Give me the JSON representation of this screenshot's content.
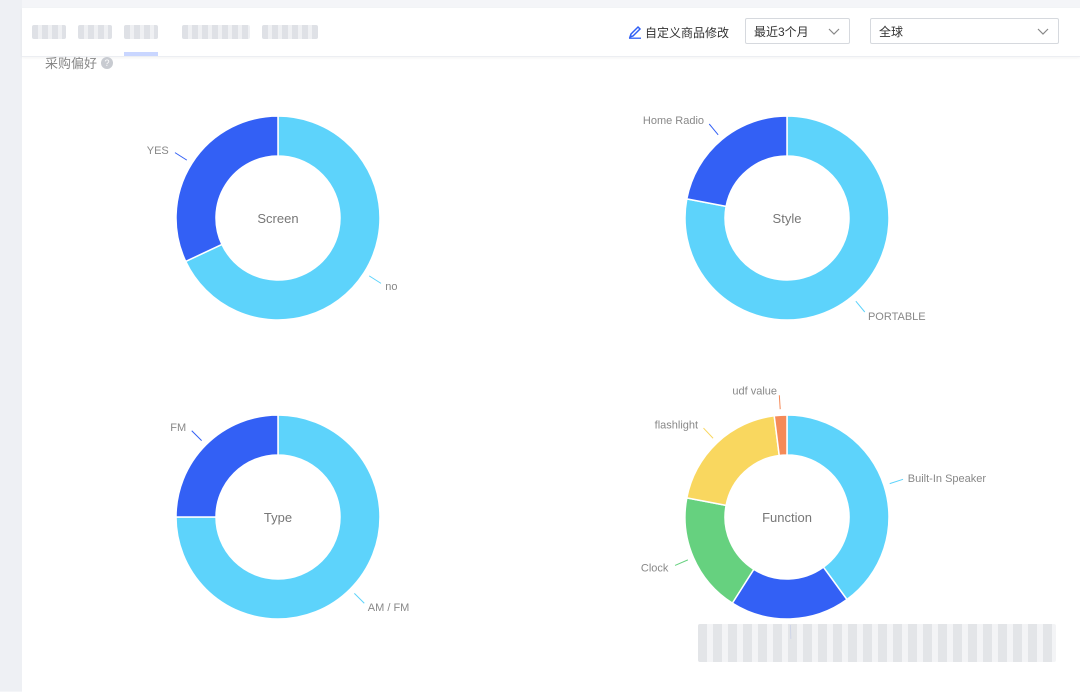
{
  "toolbar": {
    "customize_label": "自定义商品修改",
    "period_select": {
      "value": "最近3个月"
    },
    "region_select": {
      "value": "全球"
    }
  },
  "section": {
    "title": "采购偏好"
  },
  "colors": {
    "blue": "#3360f5",
    "cyan": "#5dd3fb",
    "green": "#66d17f",
    "yellow": "#f9d75f",
    "orange": "#f58a58"
  },
  "icons": [
    "pencil-icon",
    "chevron-down-icon",
    "help-icon"
  ],
  "chart_data": [
    {
      "type": "pie",
      "title": "Screen",
      "labels": [
        "no",
        "YES"
      ],
      "values": [
        68,
        32
      ],
      "colors": [
        "#5dd3fb",
        "#3360f5"
      ]
    },
    {
      "type": "pie",
      "title": "Style",
      "labels": [
        "PORTABLE",
        "Home Radio"
      ],
      "values": [
        78,
        22
      ],
      "colors": [
        "#5dd3fb",
        "#3360f5"
      ]
    },
    {
      "type": "pie",
      "title": "Type",
      "labels": [
        "AM / FM",
        "FM"
      ],
      "values": [
        75,
        25
      ],
      "colors": [
        "#5dd3fb",
        "#3360f5"
      ]
    },
    {
      "type": "pie",
      "title": "Function",
      "labels": [
        "Built-In Speaker",
        "",
        "Clock",
        "flashlight",
        "udf value"
      ],
      "values": [
        40,
        19,
        19,
        20,
        2
      ],
      "colors": [
        "#5dd3fb",
        "#3360f5",
        "#66d17f",
        "#f9d75f",
        "#f58a58"
      ]
    }
  ]
}
